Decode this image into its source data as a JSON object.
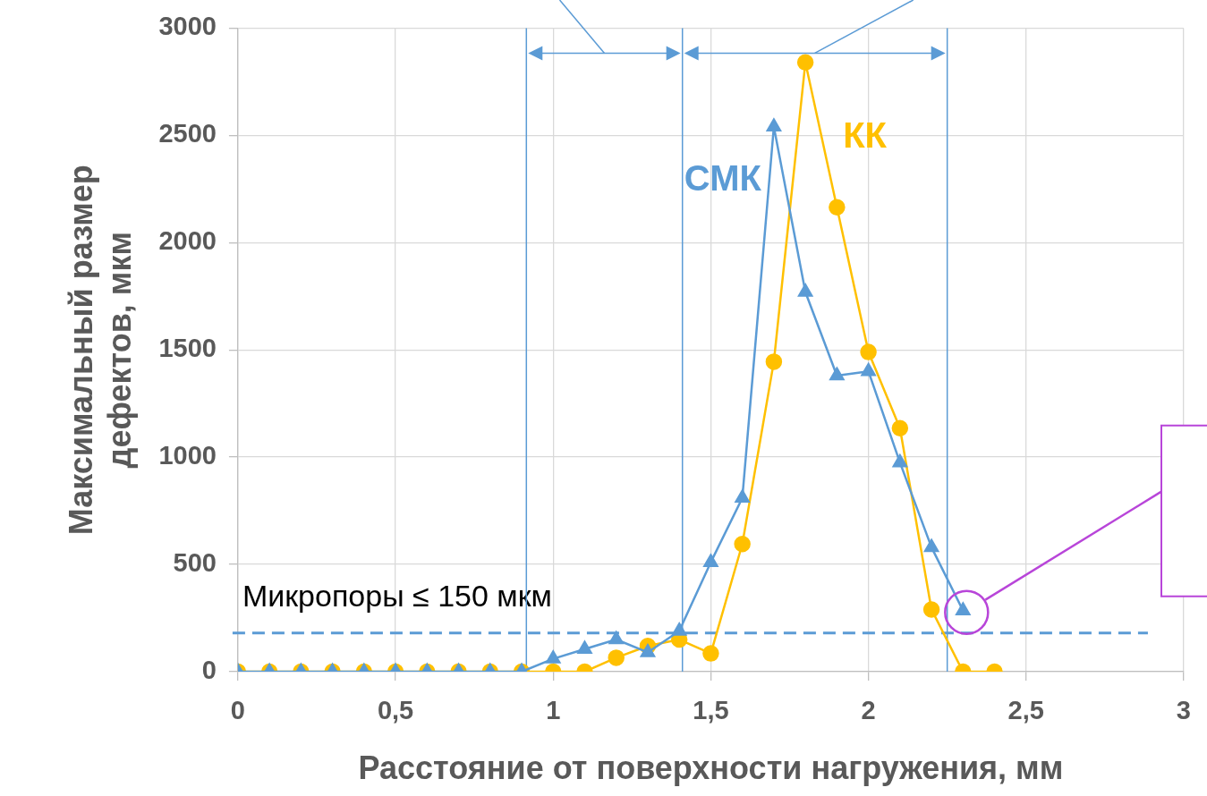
{
  "chart_data": {
    "type": "line",
    "xlabel": "Расстояние от поверхности нагружения, мм",
    "ylabel": "Максимальный размер дефектов, мкм",
    "x": [
      0,
      0.1,
      0.2,
      0.3,
      0.4,
      0.5,
      0.6,
      0.7,
      0.8,
      0.9,
      1.0,
      1.1,
      1.2,
      1.3,
      1.4,
      1.5,
      1.6,
      1.7,
      1.8,
      1.9,
      2.0,
      2.1,
      2.2,
      2.3,
      2.4
    ],
    "series": [
      {
        "name": "СМК",
        "color": "#5b9bd5",
        "marker": "triangle",
        "x": [
          0,
          0.1,
          0.2,
          0.3,
          0.4,
          0.5,
          0.6,
          0.7,
          0.8,
          0.9,
          1.0,
          1.1,
          1.2,
          1.3,
          1.4,
          1.5,
          1.6,
          1.7,
          1.8,
          1.9,
          2.0,
          2.1,
          2.2,
          2.3
        ],
        "values": [
          0,
          0,
          0,
          0,
          0,
          0,
          0,
          0,
          0,
          0,
          60,
          105,
          150,
          90,
          190,
          510,
          810,
          2540,
          1770,
          1380,
          1400,
          975,
          580,
          285
        ]
      },
      {
        "name": "КК",
        "color": "#ffc000",
        "marker": "circle",
        "values": [
          0,
          0,
          0,
          0,
          0,
          0,
          0,
          0,
          0,
          0,
          0,
          0,
          65,
          120,
          150,
          85,
          595,
          1445,
          2840,
          2165,
          1490,
          1135,
          290,
          0,
          0
        ]
      }
    ],
    "xlim": [
      0,
      3
    ],
    "xticks": [
      0,
      {
        "value": 0.5,
        "label": "0,5"
      },
      1,
      {
        "value": 1.5,
        "label": "1,5"
      },
      2,
      {
        "value": 2.5,
        "label": "2,5"
      },
      3
    ],
    "ylim": [
      0,
      3000
    ],
    "yticks": [
      0,
      500,
      1000,
      1500,
      2000,
      2500,
      3000
    ],
    "grid": true,
    "legend": false,
    "ref_lines": [
      {
        "axis": "y",
        "value": 180,
        "label": "Микропоры ≤ 150 мкм",
        "color": "#5b9bd5",
        "line_style": "dashed"
      },
      {
        "axis": "x",
        "value": 0.915,
        "color": "#5b9bd5"
      },
      {
        "axis": "x",
        "value": 1.41,
        "color": "#5b9bd5"
      },
      {
        "axis": "x",
        "value": 2.25,
        "color": "#5b9bd5"
      }
    ]
  }
}
